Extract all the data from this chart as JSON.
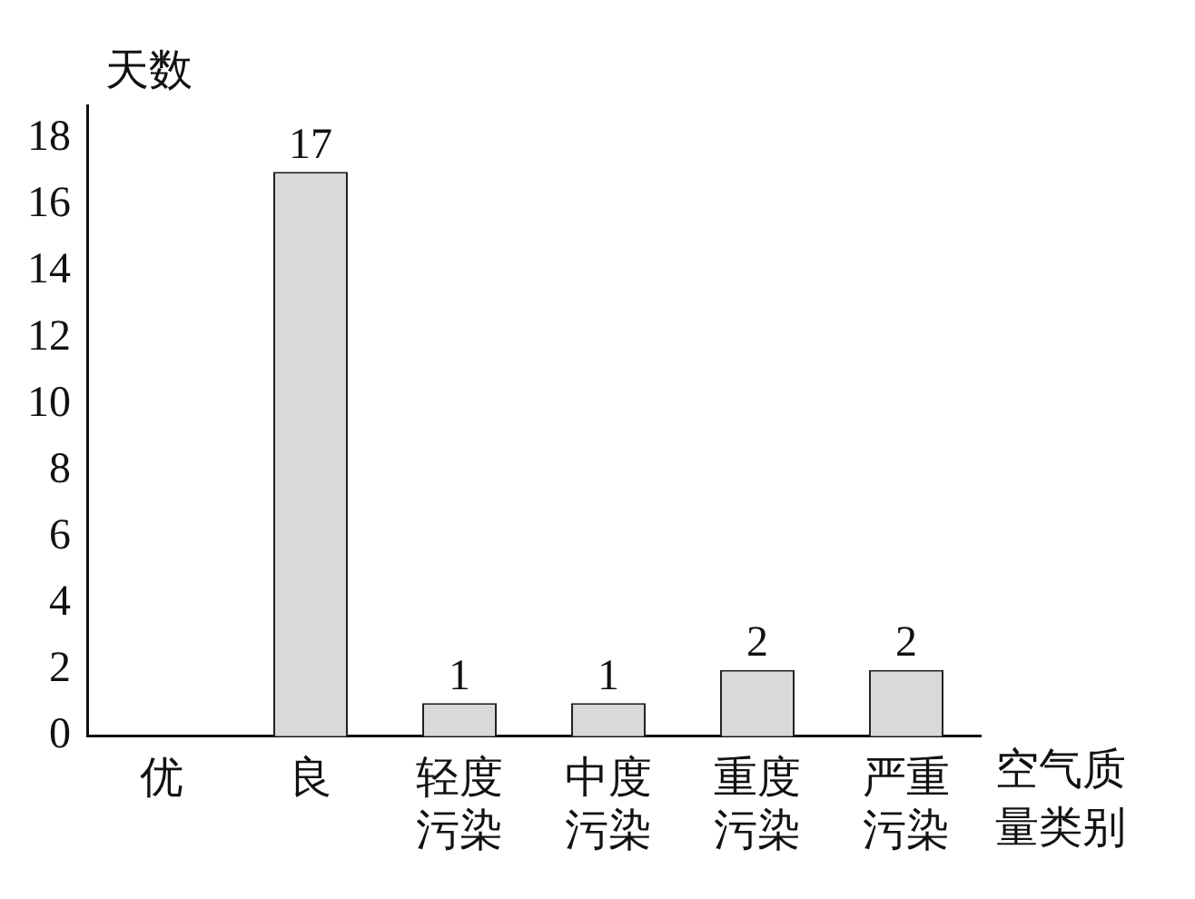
{
  "chart_data": {
    "type": "bar",
    "categories": [
      "优",
      "良",
      "轻度污染",
      "中度污染",
      "重度污染",
      "严重污染"
    ],
    "values": [
      0,
      17,
      1,
      1,
      2,
      2
    ],
    "value_labels": [
      null,
      "17",
      "1",
      "1",
      "2",
      "2"
    ],
    "color": "#d9d9d9",
    "xlabel": "空气质量类别",
    "ylabel": "天数",
    "ylim": [
      0,
      19
    ],
    "yticks": [
      0,
      2,
      4,
      6,
      8,
      10,
      12,
      14,
      16,
      18
    ],
    "grid": false
  }
}
